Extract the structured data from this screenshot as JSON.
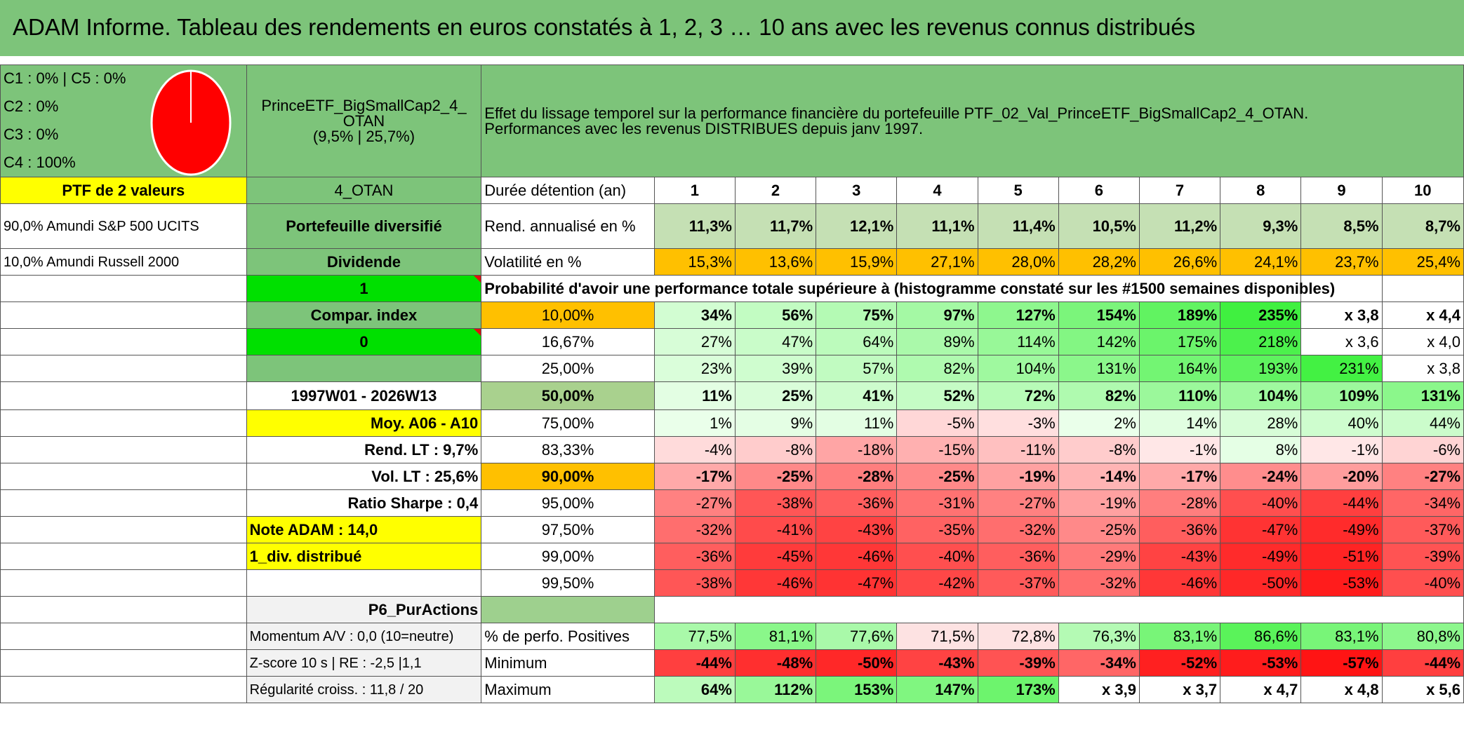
{
  "title": "ADAM Informe. Tableau des rendements en euros constatés à 1, 2, 3 … 10 ans avec les revenus connus distribués",
  "legend": [
    "C1 : 0% | C5 : 0%",
    "C2 : 0%",
    "C3 : 0%",
    "C4 : 100%"
  ],
  "pie": {
    "color": "#ff0000",
    "share_c4": 100
  },
  "portfolio": {
    "name_line1": "PrinceETF_BigSmallCap2_4_",
    "name_line2": "OTAN",
    "name_line3": "(9,5% | 25,7%)"
  },
  "description": {
    "line1": "Effet du lissage temporel sur la performance financière du portefeuille PTF_02_Val_PrinceETF_BigSmallCap2_4_OTAN.",
    "line2": "Performances avec les revenus DISTRIBUES depuis janv 1997."
  },
  "left": {
    "ptf_label": "PTF de 2 valeurs",
    "holding1": "90,0% Amundi S&P 500 UCITS",
    "holding2": "10,0% Amundi Russell 2000"
  },
  "mid": {
    "code": "4_OTAN",
    "diversified": "Portefeuille diversifié",
    "dividend": "Dividende",
    "one": "1",
    "compar": "Compar. index",
    "zero": "0",
    "period": "1997W01 - 2026W13",
    "moy": "Moy. A06 - A10",
    "rend_lt": "Rend. LT : 9,7%",
    "vol_lt": "Vol. LT : 25,6%",
    "sharpe": "Ratio Sharpe : 0,4",
    "note": "Note ADAM : 14,0",
    "div": "1_div. distribué",
    "p6": "P6_PurActions",
    "momentum": "Momentum A/V : 0,0 (10=neutre)",
    "zscore": "Z-score 10 s | RE : -2,5 |1,1",
    "regularite": "Régularité croiss. : 11,8 / 20"
  },
  "table": {
    "duration_label": "Durée détention (an)",
    "years": [
      "1",
      "2",
      "3",
      "4",
      "5",
      "6",
      "7",
      "8",
      "9",
      "10"
    ],
    "rend_label": "Rend. annualisé en %",
    "rend": [
      "11,3%",
      "11,7%",
      "12,1%",
      "11,1%",
      "11,4%",
      "10,5%",
      "11,2%",
      "9,3%",
      "8,5%",
      "8,7%"
    ],
    "vol_label": "Volatilité en %",
    "vol": [
      "15,3%",
      "13,6%",
      "15,9%",
      "27,1%",
      "28,0%",
      "28,2%",
      "26,6%",
      "24,1%",
      "23,7%",
      "25,4%"
    ],
    "prob_label": "Probabilité d'avoir une performance totale supérieure à (histogramme constaté sur les #1500 semaines disponibles)",
    "quantiles": [
      {
        "p": "10,00%",
        "v": [
          "34%",
          "56%",
          "75%",
          "97%",
          "127%",
          "154%",
          "189%",
          "235%",
          "x 3,8",
          "x 4,4"
        ]
      },
      {
        "p": "16,67%",
        "v": [
          "27%",
          "47%",
          "64%",
          "89%",
          "114%",
          "142%",
          "175%",
          "218%",
          "x 3,6",
          "x 4,0"
        ]
      },
      {
        "p": "25,00%",
        "v": [
          "23%",
          "39%",
          "57%",
          "82%",
          "104%",
          "131%",
          "164%",
          "193%",
          "231%",
          "x 3,8"
        ]
      },
      {
        "p": "50,00%",
        "v": [
          "11%",
          "25%",
          "41%",
          "52%",
          "72%",
          "82%",
          "110%",
          "104%",
          "109%",
          "131%"
        ]
      },
      {
        "p": "75,00%",
        "v": [
          "1%",
          "9%",
          "11%",
          "-5%",
          "-3%",
          "2%",
          "14%",
          "28%",
          "40%",
          "44%"
        ]
      },
      {
        "p": "83,33%",
        "v": [
          "-4%",
          "-8%",
          "-18%",
          "-15%",
          "-11%",
          "-8%",
          "-1%",
          "8%",
          "-1%",
          "-6%"
        ]
      },
      {
        "p": "90,00%",
        "v": [
          "-17%",
          "-25%",
          "-28%",
          "-25%",
          "-19%",
          "-14%",
          "-17%",
          "-24%",
          "-20%",
          "-27%"
        ]
      },
      {
        "p": "95,00%",
        "v": [
          "-27%",
          "-38%",
          "-36%",
          "-31%",
          "-27%",
          "-19%",
          "-28%",
          "-40%",
          "-44%",
          "-34%"
        ]
      },
      {
        "p": "97,50%",
        "v": [
          "-32%",
          "-41%",
          "-43%",
          "-35%",
          "-32%",
          "-25%",
          "-36%",
          "-47%",
          "-49%",
          "-37%"
        ]
      },
      {
        "p": "99,00%",
        "v": [
          "-36%",
          "-45%",
          "-46%",
          "-40%",
          "-36%",
          "-29%",
          "-43%",
          "-49%",
          "-51%",
          "-39%"
        ]
      },
      {
        "p": "99,50%",
        "v": [
          "-38%",
          "-46%",
          "-47%",
          "-42%",
          "-37%",
          "-32%",
          "-46%",
          "-50%",
          "-53%",
          "-40%"
        ]
      }
    ],
    "pos_label": "% de perfo. Positives",
    "pos": [
      "77,5%",
      "81,1%",
      "77,6%",
      "71,5%",
      "72,8%",
      "76,3%",
      "83,1%",
      "86,6%",
      "83,1%",
      "80,8%"
    ],
    "min_label": "Minimum",
    "min": [
      "-44%",
      "-48%",
      "-50%",
      "-43%",
      "-39%",
      "-34%",
      "-52%",
      "-53%",
      "-57%",
      "-44%"
    ],
    "max_label": "Maximum",
    "max": [
      "64%",
      "112%",
      "153%",
      "147%",
      "173%",
      "x 3,9",
      "x 3,7",
      "x 4,7",
      "x 4,8",
      "x 5,6"
    ]
  },
  "colors": {
    "header_green": "#7dc47a",
    "accent_yellow": "#ffff00",
    "accent_orange": "#ffc000",
    "bright_green": "#00e000",
    "median_green": "#a9d18e"
  }
}
